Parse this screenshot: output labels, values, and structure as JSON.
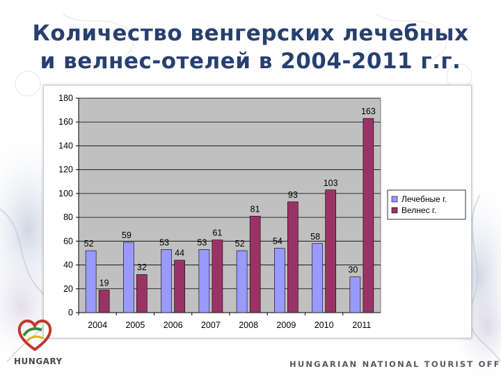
{
  "slide": {
    "title_line1": "Количество венгерских лечебных",
    "title_line2": "и велнес-отелей в 2004-2011 г.г.",
    "brand": "HUNGARY",
    "office": "HUNGARIAN NATIONAL TOURIST OFFICE",
    "logo_icon": "hungary-heart-logo-icon",
    "colors": {
      "title": "#27406f",
      "background_wisps": "#b9c3d6"
    }
  },
  "chart_data": {
    "type": "bar",
    "categories": [
      "2004",
      "2005",
      "2006",
      "2007",
      "2008",
      "2009",
      "2010",
      "2011"
    ],
    "series": [
      {
        "name": "Лечебные г.",
        "values": [
          52,
          59,
          53,
          53,
          52,
          54,
          58,
          30
        ],
        "color": "#9999ff"
      },
      {
        "name": "Велнес г.",
        "values": [
          19,
          32,
          44,
          61,
          81,
          93,
          103,
          163
        ],
        "color": "#993366"
      }
    ],
    "title": "",
    "xlabel": "",
    "ylabel": "",
    "ylim": [
      0,
      180
    ],
    "yticks": [
      0,
      20,
      40,
      60,
      80,
      100,
      120,
      140,
      160,
      180
    ],
    "grid": true,
    "plot_background": "#c0c0c0",
    "legend": "right",
    "data_labels": true
  }
}
